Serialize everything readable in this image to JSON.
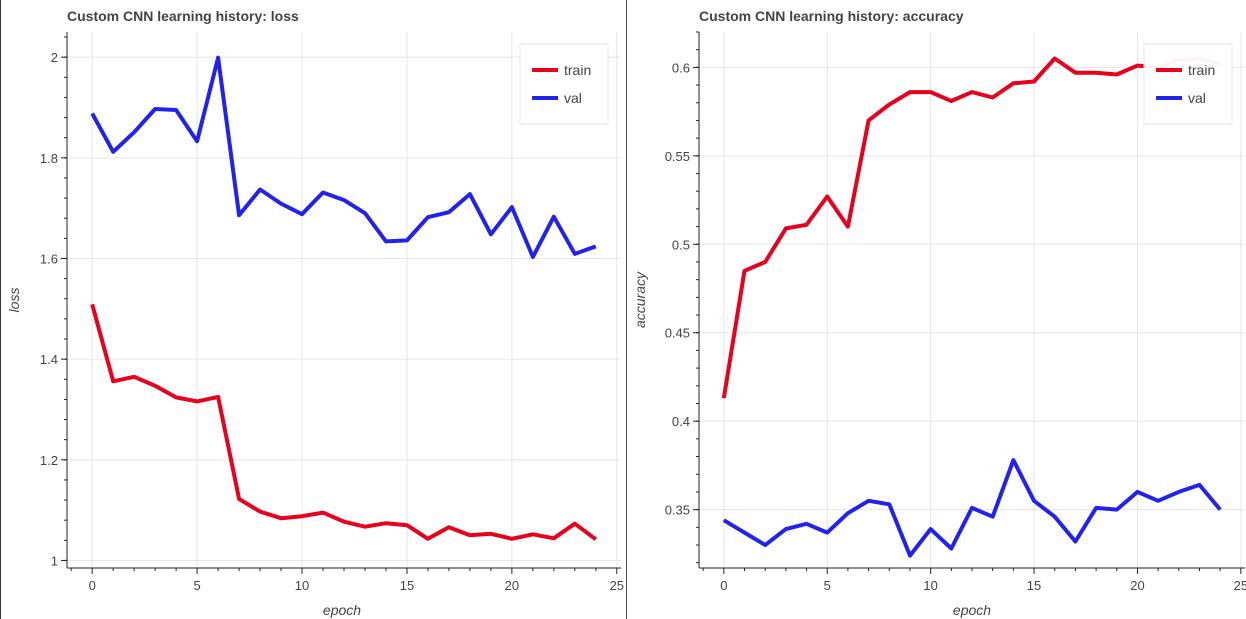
{
  "series_colors": {
    "train": "#e8001c",
    "val": "#2222ee"
  },
  "chart_data": [
    {
      "type": "line",
      "title": "Custom CNN learning history: loss",
      "xlabel": "epoch",
      "ylabel": "loss",
      "xlim": [
        -1.2,
        25.2
      ],
      "ylim": [
        0.985,
        2.05
      ],
      "xticks": [
        0,
        5,
        10,
        15,
        20,
        25
      ],
      "yticks": [
        1,
        1.2,
        1.4,
        1.6,
        1.8,
        2
      ],
      "ytick_labels": [
        "1",
        "1.2",
        "1.4",
        "1.6",
        "1.8",
        "2"
      ],
      "grid": true,
      "legend_position": "top-right",
      "x": [
        0,
        1,
        2,
        3,
        4,
        5,
        6,
        7,
        8,
        9,
        10,
        11,
        12,
        13,
        14,
        15,
        16,
        17,
        18,
        19,
        20,
        21,
        22,
        23,
        24
      ],
      "series": [
        {
          "name": "train",
          "values": [
            1.509,
            1.356,
            1.365,
            1.347,
            1.324,
            1.316,
            1.325,
            1.122,
            1.097,
            1.084,
            1.088,
            1.095,
            1.077,
            1.067,
            1.074,
            1.07,
            1.043,
            1.066,
            1.05,
            1.053,
            1.043,
            1.052,
            1.044,
            1.073,
            1.042
          ]
        },
        {
          "name": "val",
          "values": [
            1.888,
            1.812,
            1.851,
            1.897,
            1.895,
            1.833,
            1.999,
            1.686,
            1.737,
            1.709,
            1.688,
            1.731,
            1.716,
            1.69,
            1.634,
            1.636,
            1.682,
            1.692,
            1.728,
            1.648,
            1.702,
            1.603,
            1.683,
            1.609,
            1.624
          ]
        }
      ]
    },
    {
      "type": "line",
      "title": "Custom CNN learning history: accuracy",
      "xlabel": "epoch",
      "ylabel": "accuracy",
      "xlim": [
        -1.2,
        25.2
      ],
      "ylim": [
        0.317,
        0.62
      ],
      "xticks": [
        0,
        5,
        10,
        15,
        20,
        25
      ],
      "yticks": [
        0.35,
        0.4,
        0.45,
        0.5,
        0.55,
        0.6
      ],
      "ytick_labels": [
        "0.35",
        "0.4",
        "0.45",
        "0.5",
        "0.55",
        "0.6"
      ],
      "grid": true,
      "legend_position": "top-right",
      "x": [
        0,
        1,
        2,
        3,
        4,
        5,
        6,
        7,
        8,
        9,
        10,
        11,
        12,
        13,
        14,
        15,
        16,
        17,
        18,
        19,
        20,
        21,
        22,
        23,
        24
      ],
      "series": [
        {
          "name": "train",
          "values": [
            0.413,
            0.485,
            0.49,
            0.509,
            0.511,
            0.527,
            0.51,
            0.57,
            0.579,
            0.586,
            0.586,
            0.581,
            0.586,
            0.583,
            0.591,
            0.592,
            0.605,
            0.597,
            0.597,
            0.596,
            0.601,
            0.6,
            0.604,
            0.605,
            0.602
          ]
        },
        {
          "name": "val",
          "values": [
            0.344,
            0.337,
            0.33,
            0.339,
            0.342,
            0.337,
            0.348,
            0.355,
            0.353,
            0.324,
            0.339,
            0.328,
            0.351,
            0.346,
            0.378,
            0.355,
            0.346,
            0.332,
            0.351,
            0.35,
            0.36,
            0.355,
            0.36,
            0.364,
            0.35
          ]
        }
      ]
    }
  ]
}
